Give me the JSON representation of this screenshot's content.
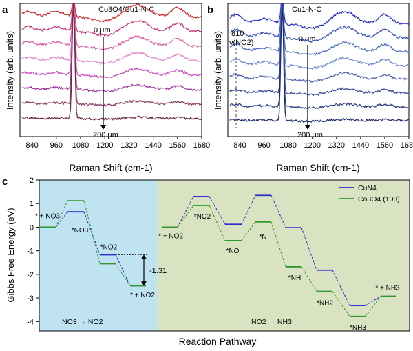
{
  "chart_data": [
    {
      "type": "line",
      "panel_label": "a",
      "sample_label": "Co3O4/Cu1-N-C",
      "xlabel": "Raman Shift (cm-1)",
      "ylabel": "Intensity (arb. units)",
      "xticks": [
        840,
        960,
        1080,
        1200,
        1320,
        1440,
        1560,
        1680
      ],
      "xlim": [
        780,
        1680
      ],
      "depth_top": "0 μm",
      "depth_bottom": "200 μm",
      "series_colors": [
        "#d42a2a",
        "#c9357b",
        "#dd5fa3",
        "#e28ad0",
        "#cc4fc4",
        "#a23da0",
        "#8a3c66",
        "#6e2b38"
      ]
    },
    {
      "type": "line",
      "panel_label": "b",
      "sample_label": "Cu1-N-C",
      "xlabel": "Raman Shift (cm-1)",
      "ylabel": "Intensity (arb. units)",
      "xticks": [
        840,
        960,
        1080,
        1200,
        1320,
        1440,
        1560,
        1680
      ],
      "xlim": [
        780,
        1680
      ],
      "depth_top": "0 μm",
      "depth_bottom": "200 μm",
      "annotation_value": "810",
      "annotation_mode": "ν(NO2)",
      "series_colors": [
        "#2a2fd0",
        "#3a57c2",
        "#4f6fc8",
        "#6b86d2",
        "#5566b8",
        "#3a4aa0",
        "#2a3a86",
        "#1f2f6e"
      ]
    },
    {
      "type": "line",
      "panel_label": "c",
      "xlabel": "Reaction Pathway",
      "ylabel": "Gibbs Free Energy (eV)",
      "ylim": [
        -4.4,
        2.0
      ],
      "yticks": [
        2,
        1,
        0,
        -1,
        -2,
        -3,
        -4
      ],
      "series": [
        {
          "name": "CuN4",
          "color": "#2c2ccf",
          "values": [
            0,
            0.65,
            -1.17,
            -2.48,
            0,
            1.3,
            0.12,
            1.35,
            -0.02,
            -1.82,
            -3.32,
            -2.93
          ]
        },
        {
          "name": "Co3O4 (100)",
          "color": "#2e9a2e",
          "values": [
            0,
            1.12,
            -1.55,
            -2.48,
            0,
            0.92,
            -0.57,
            0.22,
            -1.68,
            -2.72,
            -3.78,
            -2.93
          ]
        }
      ],
      "state_labels": [
        "* + NO3",
        "*NO3",
        "*NO2",
        "* + NO2",
        "* + NO2",
        "*NO2",
        "*NO",
        "*N",
        "*NH",
        "*NH2",
        "*NH3",
        "* + NH3"
      ],
      "energy_gap_label": "-1.31",
      "region_left_label": "NO3 → NO2",
      "region_right_label": "NO2 → NH3",
      "region_left_color": "#bfe3f1",
      "region_right_color": "#d9e3c2"
    }
  ]
}
